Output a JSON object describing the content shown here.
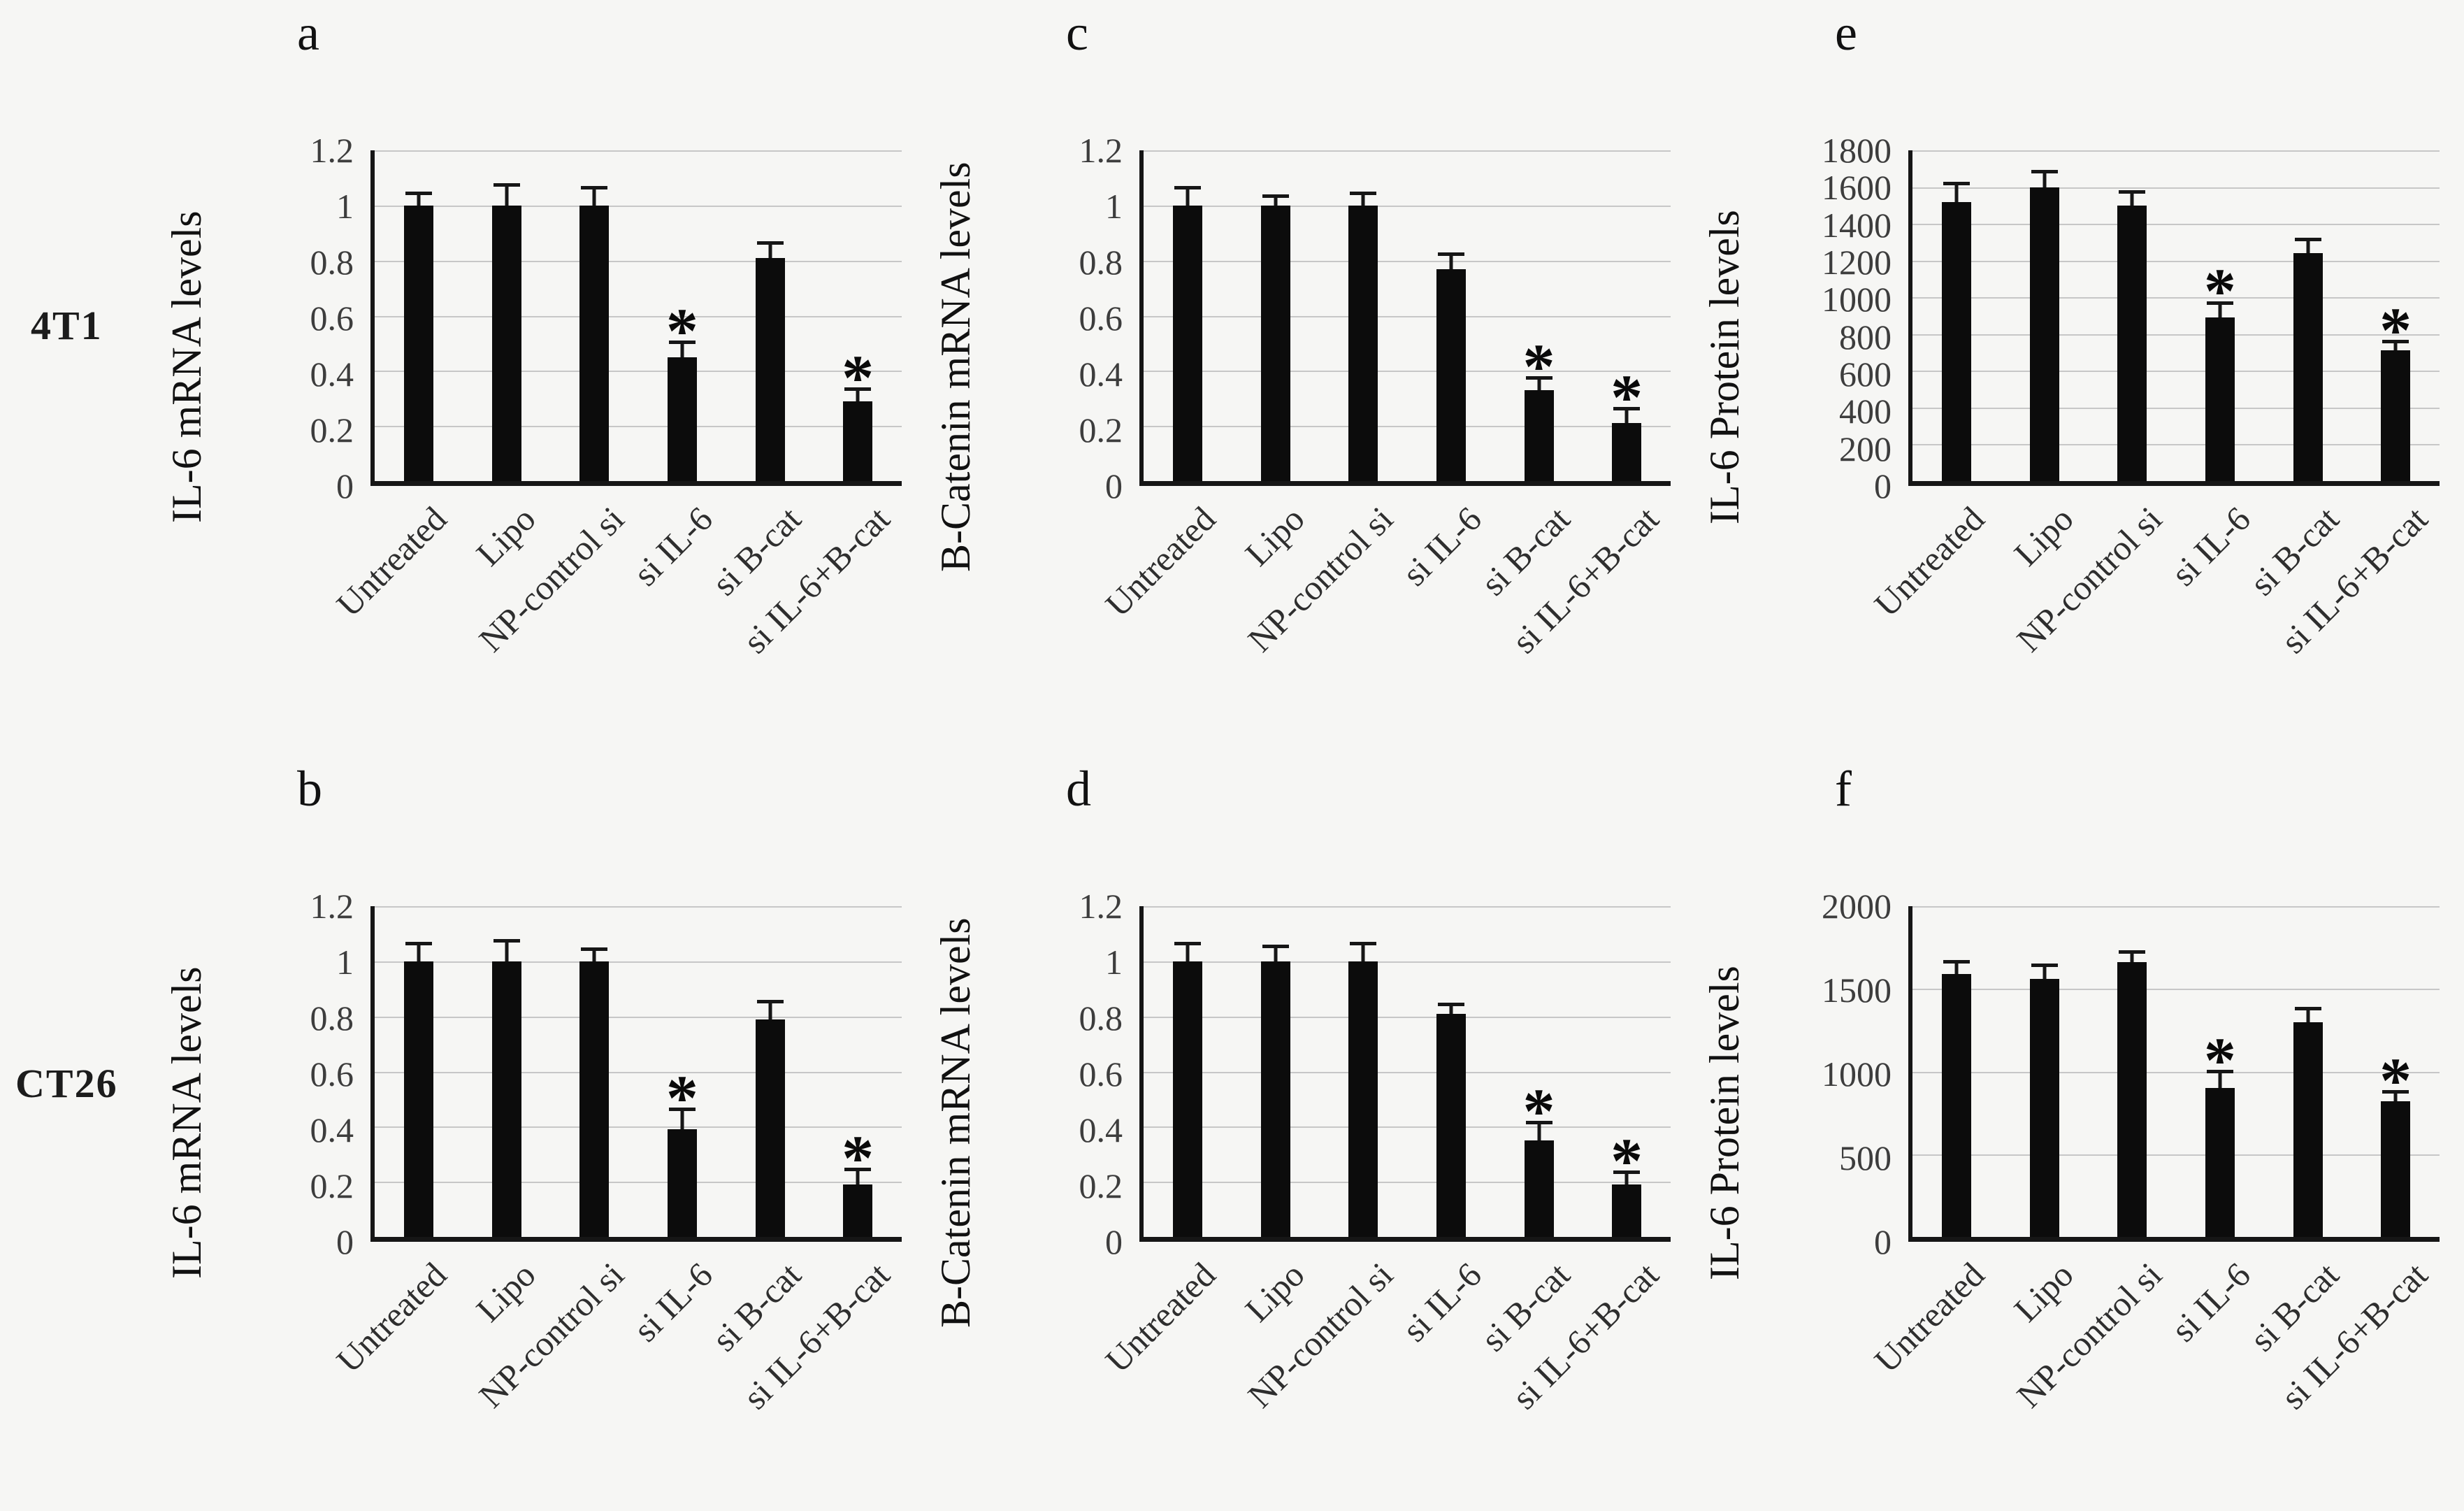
{
  "figure": {
    "background": "#f6f6f4",
    "bar_color": "#0c0c0c",
    "grid_color": "#c7c7c7",
    "axis_color": "#161616",
    "sig_marker": "*",
    "row_labels": [
      "4T1",
      "CT26"
    ],
    "categories": [
      "Untreated",
      "Lipo",
      "NP-control si",
      "si IL-6",
      "si B-cat",
      "si IL-6+B-cat"
    ]
  },
  "chart_data": [
    {
      "type": "bar",
      "panel": "a",
      "row": 0,
      "col": 0,
      "cell_line": "4T1",
      "ylabel": "IL-6 mRNA levels",
      "ylim": [
        0,
        1.2
      ],
      "yticks": [
        0,
        0.2,
        0.4,
        0.6,
        0.8,
        1,
        1.2
      ],
      "categories": [
        "Untreated",
        "Lipo",
        "NP-control si",
        "si IL-6",
        "si B-cat",
        "si IL-6+B-cat"
      ],
      "values": [
        1.0,
        1.0,
        1.0,
        0.45,
        0.81,
        0.29
      ],
      "errors": [
        0.05,
        0.08,
        0.07,
        0.06,
        0.06,
        0.05
      ],
      "significant": [
        false,
        false,
        false,
        true,
        false,
        true
      ],
      "grid": true,
      "legend": "none"
    },
    {
      "type": "bar",
      "panel": "b",
      "row": 1,
      "col": 0,
      "cell_line": "CT26",
      "ylabel": "IL-6 mRNA levels",
      "ylim": [
        0,
        1.2
      ],
      "yticks": [
        0,
        0.2,
        0.4,
        0.6,
        0.8,
        1,
        1.2
      ],
      "categories": [
        "Untreated",
        "Lipo",
        "NP-control si",
        "si IL-6",
        "si B-cat",
        "si IL-6+B-cat"
      ],
      "values": [
        1.0,
        1.0,
        1.0,
        0.39,
        0.79,
        0.19
      ],
      "errors": [
        0.07,
        0.08,
        0.05,
        0.08,
        0.07,
        0.06
      ],
      "significant": [
        false,
        false,
        false,
        true,
        false,
        true
      ],
      "grid": true,
      "legend": "none"
    },
    {
      "type": "bar",
      "panel": "c",
      "row": 0,
      "col": 1,
      "cell_line": "4T1",
      "ylabel": "B-Catenin mRNA levels",
      "ylim": [
        0,
        1.2
      ],
      "yticks": [
        0,
        0.2,
        0.4,
        0.6,
        0.8,
        1,
        1.2
      ],
      "categories": [
        "Untreated",
        "Lipo",
        "NP-control si",
        "si IL-6",
        "si B-cat",
        "si IL-6+B-cat"
      ],
      "values": [
        1.0,
        1.0,
        1.0,
        0.77,
        0.33,
        0.21
      ],
      "errors": [
        0.07,
        0.04,
        0.05,
        0.06,
        0.05,
        0.06
      ],
      "significant": [
        false,
        false,
        false,
        false,
        true,
        true
      ],
      "grid": true,
      "legend": "none"
    },
    {
      "type": "bar",
      "panel": "d",
      "row": 1,
      "col": 1,
      "cell_line": "CT26",
      "ylabel": "B-Catenin mRNA levels",
      "ylim": [
        0,
        1.2
      ],
      "yticks": [
        0,
        0.2,
        0.4,
        0.6,
        0.8,
        1,
        1.2
      ],
      "categories": [
        "Untreated",
        "Lipo",
        "NP-control si",
        "si IL-6",
        "si B-cat",
        "si IL-6+B-cat"
      ],
      "values": [
        1.0,
        1.0,
        1.0,
        0.81,
        0.35,
        0.19
      ],
      "errors": [
        0.07,
        0.06,
        0.07,
        0.04,
        0.07,
        0.05
      ],
      "significant": [
        false,
        false,
        false,
        false,
        true,
        true
      ],
      "grid": true,
      "legend": "none"
    },
    {
      "type": "bar",
      "panel": "e",
      "row": 0,
      "col": 2,
      "cell_line": "4T1",
      "ylabel": "IL-6 Protein levels",
      "ylim": [
        0,
        1800
      ],
      "yticks": [
        0,
        200,
        400,
        600,
        800,
        1000,
        1200,
        1400,
        1600,
        1800
      ],
      "categories": [
        "Untreated",
        "Lipo",
        "NP-control si",
        "si IL-6",
        "si B-cat",
        "si IL-6+B-cat"
      ],
      "values": [
        1520,
        1600,
        1500,
        890,
        1240,
        710
      ],
      "errors": [
        110,
        95,
        85,
        90,
        85,
        60
      ],
      "significant": [
        false,
        false,
        false,
        true,
        false,
        true
      ],
      "grid": true,
      "legend": "none"
    },
    {
      "type": "bar",
      "panel": "f",
      "row": 1,
      "col": 2,
      "cell_line": "CT26",
      "ylabel": "IL-6 Protein levels",
      "ylim": [
        0,
        2000
      ],
      "yticks": [
        0,
        500,
        1000,
        1500,
        2000
      ],
      "categories": [
        "Untreated",
        "Lipo",
        "NP-control si",
        "si IL-6",
        "si B-cat",
        "si IL-6+B-cat"
      ],
      "values": [
        1590,
        1560,
        1660,
        900,
        1300,
        820
      ],
      "errors": [
        85,
        95,
        75,
        110,
        90,
        70
      ],
      "significant": [
        false,
        false,
        false,
        true,
        false,
        true
      ],
      "grid": true,
      "legend": "none"
    }
  ]
}
